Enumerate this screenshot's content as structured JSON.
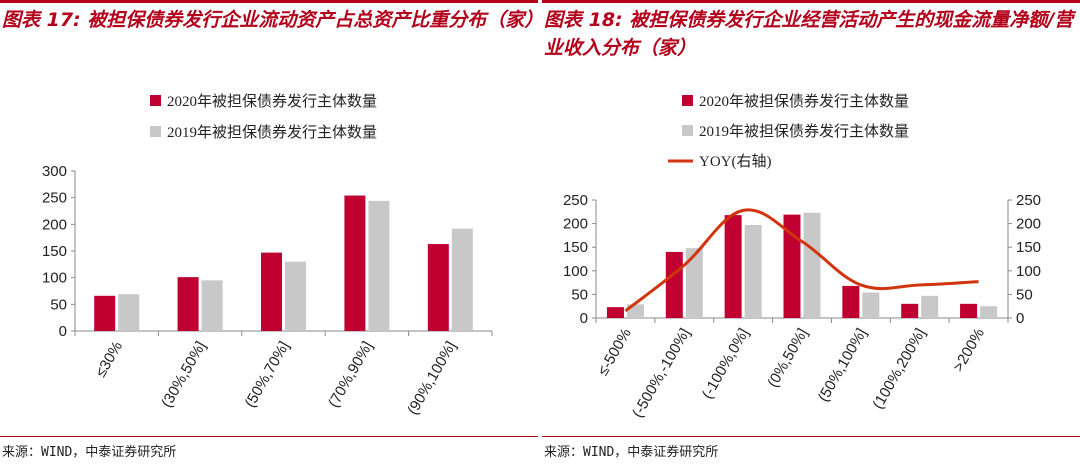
{
  "colors": {
    "accent": "#b3001b",
    "bar2020": "#c00030",
    "bar2019": "#c8c8c8",
    "yoy": "#d2350e",
    "axis": "#8a8a8a"
  },
  "left": {
    "title": "图表 17: 被担保债券发行企业流动资产占总资产比重分布（家）",
    "source": "来源：WIND，中泰证券研究所"
  },
  "right": {
    "title": "图表 18: 被担保债券发行企业经营活动产生的现金流量净额/营业收入分布（家）",
    "source": "来源：WIND，中泰证券研究所"
  },
  "chart_data": [
    {
      "type": "bar",
      "title": "图表 17: 被担保债券发行企业流动资产占总资产比重分布（家）",
      "categories": [
        "≤30%",
        "(30%,50%]",
        "(50%,70%]",
        "(70%,90%]",
        "(90%,100%]"
      ],
      "series": [
        {
          "name": "2020年被担保债券发行主体数量",
          "values": [
            66,
            101,
            147,
            254,
            163
          ]
        },
        {
          "name": "2019年被担保债券发行主体数量",
          "values": [
            69,
            95,
            130,
            244,
            192
          ]
        }
      ],
      "ylim": [
        0,
        300
      ],
      "yticks": [
        0,
        50,
        100,
        150,
        200,
        250,
        300
      ],
      "legend": "top"
    },
    {
      "type": "bar",
      "title": "图表 18: 被担保债券发行企业经营活动产生的现金流量净额/营业收入分布（家）",
      "categories": [
        "≤-500%",
        "(-500%,-100%]",
        "(-100%,0%]",
        "(0%,50%]",
        "(50%,100%]",
        "(100%,200%]",
        ">200%"
      ],
      "series": [
        {
          "name": "2020年被担保债券发行主体数量",
          "values": [
            23,
            140,
            218,
            219,
            68,
            30,
            30
          ]
        },
        {
          "name": "2019年被担保债券发行主体数量",
          "values": [
            29,
            148,
            197,
            223,
            54,
            47,
            25
          ]
        }
      ],
      "line_series": {
        "name": "YOY(右轴)",
        "values": [
          15,
          112,
          228,
          162,
          70,
          70,
          77
        ],
        "axis": "right"
      },
      "ylim": [
        0,
        250
      ],
      "yticks": [
        0,
        50,
        100,
        150,
        200,
        250
      ],
      "y2lim": [
        0,
        250
      ],
      "y2ticks": [
        0,
        50,
        100,
        150,
        200,
        250
      ],
      "legend": "top"
    }
  ]
}
